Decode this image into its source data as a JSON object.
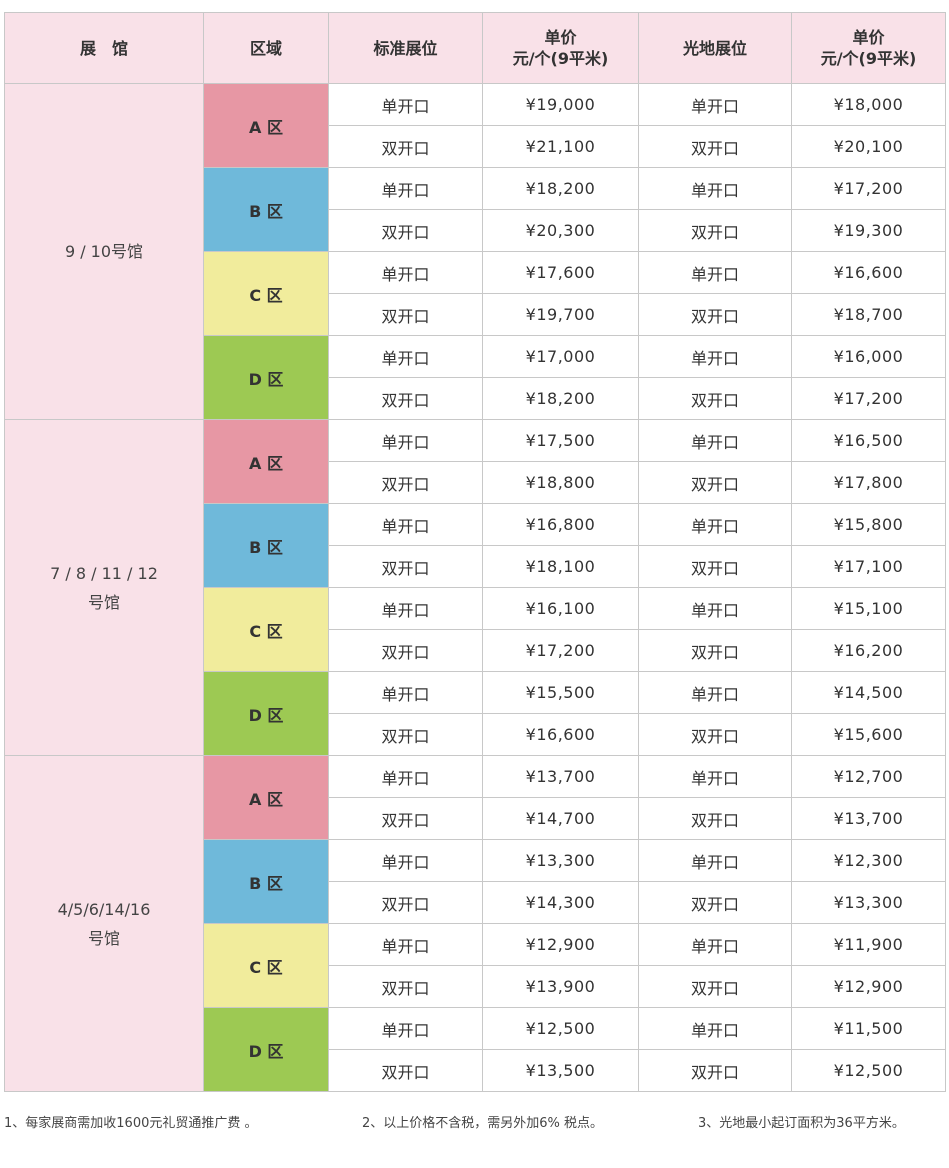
{
  "headers": {
    "hall": "展　馆",
    "zone": "区域",
    "standard": "标准展位",
    "price_line1": "单价",
    "price_line2": "元/个(9平米)",
    "raw": "光地展位"
  },
  "colors": {
    "header_bg": "#f9e1e8",
    "hall_bg": "#f9e1e8",
    "zone_A": "#e797a4",
    "zone_B": "#6fb9da",
    "zone_C": "#f1ec9c",
    "zone_D": "#9dc953"
  },
  "halls": [
    {
      "lines": [
        "9 / 10号馆"
      ],
      "zones": [
        {
          "key": "A",
          "label": "A 区",
          "rows": [
            {
              "std": "单开口",
              "std_price": "¥19,000",
              "raw": "单开口",
              "raw_price": "¥18,000"
            },
            {
              "std": "双开口",
              "std_price": "¥21,100",
              "raw": "双开口",
              "raw_price": "¥20,100"
            }
          ]
        },
        {
          "key": "B",
          "label": "B 区",
          "rows": [
            {
              "std": "单开口",
              "std_price": "¥18,200",
              "raw": "单开口",
              "raw_price": "¥17,200"
            },
            {
              "std": "双开口",
              "std_price": "¥20,300",
              "raw": "双开口",
              "raw_price": "¥19,300"
            }
          ]
        },
        {
          "key": "C",
          "label": "C 区",
          "rows": [
            {
              "std": "单开口",
              "std_price": "¥17,600",
              "raw": "单开口",
              "raw_price": "¥16,600"
            },
            {
              "std": "双开口",
              "std_price": "¥19,700",
              "raw": "双开口",
              "raw_price": "¥18,700"
            }
          ]
        },
        {
          "key": "D",
          "label": "D 区",
          "rows": [
            {
              "std": "单开口",
              "std_price": "¥17,000",
              "raw": "单开口",
              "raw_price": "¥16,000"
            },
            {
              "std": "双开口",
              "std_price": "¥18,200",
              "raw": "双开口",
              "raw_price": "¥17,200"
            }
          ]
        }
      ]
    },
    {
      "lines": [
        "7 / 8 / 11 / 12",
        "号馆"
      ],
      "zones": [
        {
          "key": "A",
          "label": "A 区",
          "rows": [
            {
              "std": "单开口",
              "std_price": "¥17,500",
              "raw": "单开口",
              "raw_price": "¥16,500"
            },
            {
              "std": "双开口",
              "std_price": "¥18,800",
              "raw": "双开口",
              "raw_price": "¥17,800"
            }
          ]
        },
        {
          "key": "B",
          "label": "B 区",
          "rows": [
            {
              "std": "单开口",
              "std_price": "¥16,800",
              "raw": "单开口",
              "raw_price": "¥15,800"
            },
            {
              "std": "双开口",
              "std_price": "¥18,100",
              "raw": "双开口",
              "raw_price": "¥17,100"
            }
          ]
        },
        {
          "key": "C",
          "label": "C 区",
          "rows": [
            {
              "std": "单开口",
              "std_price": "¥16,100",
              "raw": "单开口",
              "raw_price": "¥15,100"
            },
            {
              "std": "双开口",
              "std_price": "¥17,200",
              "raw": "双开口",
              "raw_price": "¥16,200"
            }
          ]
        },
        {
          "key": "D",
          "label": "D 区",
          "rows": [
            {
              "std": "单开口",
              "std_price": "¥15,500",
              "raw": "单开口",
              "raw_price": "¥14,500"
            },
            {
              "std": "双开口",
              "std_price": "¥16,600",
              "raw": "双开口",
              "raw_price": "¥15,600"
            }
          ]
        }
      ]
    },
    {
      "lines": [
        "4/5/6/14/16",
        "号馆"
      ],
      "zones": [
        {
          "key": "A",
          "label": "A 区",
          "rows": [
            {
              "std": "单开口",
              "std_price": "¥13,700",
              "raw": "单开口",
              "raw_price": "¥12,700"
            },
            {
              "std": "双开口",
              "std_price": "¥14,700",
              "raw": "双开口",
              "raw_price": "¥13,700"
            }
          ]
        },
        {
          "key": "B",
          "label": "B 区",
          "rows": [
            {
              "std": "单开口",
              "std_price": "¥13,300",
              "raw": "单开口",
              "raw_price": "¥12,300"
            },
            {
              "std": "双开口",
              "std_price": "¥14,300",
              "raw": "双开口",
              "raw_price": "¥13,300"
            }
          ]
        },
        {
          "key": "C",
          "label": "C 区",
          "rows": [
            {
              "std": "单开口",
              "std_price": "¥12,900",
              "raw": "单开口",
              "raw_price": "¥11,900"
            },
            {
              "std": "双开口",
              "std_price": "¥13,900",
              "raw": "双开口",
              "raw_price": "¥12,900"
            }
          ]
        },
        {
          "key": "D",
          "label": "D 区",
          "rows": [
            {
              "std": "单开口",
              "std_price": "¥12,500",
              "raw": "单开口",
              "raw_price": "¥11,500"
            },
            {
              "std": "双开口",
              "std_price": "¥13,500",
              "raw": "双开口",
              "raw_price": "¥12,500"
            }
          ]
        }
      ]
    }
  ],
  "notes": [
    "1、每家展商需加收1600元礼贸通推广费 。",
    "2、以上价格不含税，需另外加6% 税点。",
    "3、光地最小起订面积为36平方米。"
  ]
}
